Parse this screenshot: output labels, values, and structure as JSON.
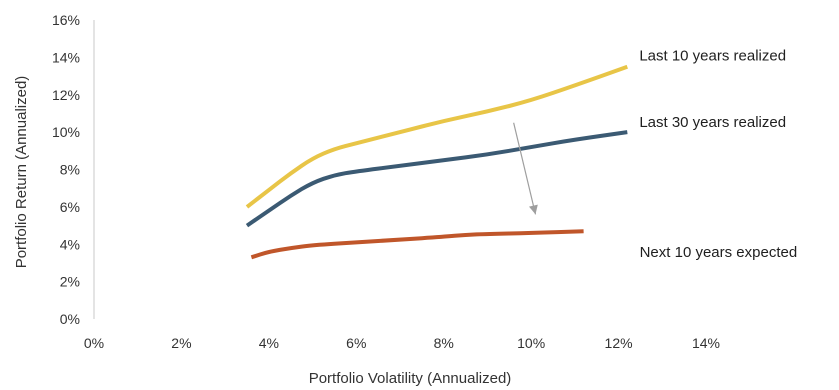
{
  "chart_data": {
    "type": "line",
    "title": "",
    "xlabel": "Portfolio Volatility (Annualized)",
    "ylabel": "Portfolio Return (Annualized)",
    "xlim": [
      0,
      14
    ],
    "ylim": [
      0,
      16
    ],
    "x_ticks": [
      0,
      2,
      4,
      6,
      8,
      10,
      12,
      14
    ],
    "y_ticks": [
      0,
      2,
      4,
      6,
      8,
      10,
      12,
      14,
      16
    ],
    "x_tick_labels": [
      "0%",
      "2%",
      "4%",
      "6%",
      "8%",
      "10%",
      "12%",
      "14%"
    ],
    "y_tick_labels": [
      "0%",
      "2%",
      "4%",
      "6%",
      "8%",
      "10%",
      "12%",
      "14%",
      "16%"
    ],
    "grid": false,
    "series": [
      {
        "name": "Last 10 years realized",
        "color": "#E8C547",
        "x": [
          3.5,
          4.0,
          4.5,
          5.0,
          5.5,
          6.0,
          7.0,
          8.0,
          9.0,
          10.0,
          11.0,
          12.2
        ],
        "y": [
          6.0,
          6.9,
          7.8,
          8.6,
          9.1,
          9.4,
          10.0,
          10.6,
          11.1,
          11.7,
          12.5,
          13.5
        ]
      },
      {
        "name": "Last 30 years realized",
        "color": "#3B5A73",
        "x": [
          3.5,
          4.0,
          4.5,
          5.0,
          5.5,
          6.0,
          7.0,
          8.0,
          9.0,
          10.0,
          11.0,
          12.2
        ],
        "y": [
          5.0,
          5.8,
          6.6,
          7.3,
          7.7,
          7.9,
          8.2,
          8.5,
          8.8,
          9.2,
          9.6,
          10.0
        ]
      },
      {
        "name": "Next 10 years expected",
        "color": "#C0562A",
        "x": [
          3.6,
          4.0,
          4.5,
          5.0,
          6.0,
          7.0,
          8.0,
          8.5,
          9.0,
          10.0,
          11.2
        ],
        "y": [
          3.3,
          3.6,
          3.8,
          3.95,
          4.1,
          4.25,
          4.4,
          4.5,
          4.55,
          4.6,
          4.7
        ]
      }
    ],
    "arrow": {
      "from": [
        9.6,
        10.5
      ],
      "to": [
        10.1,
        5.6
      ],
      "color": "#9E9E9E"
    }
  }
}
